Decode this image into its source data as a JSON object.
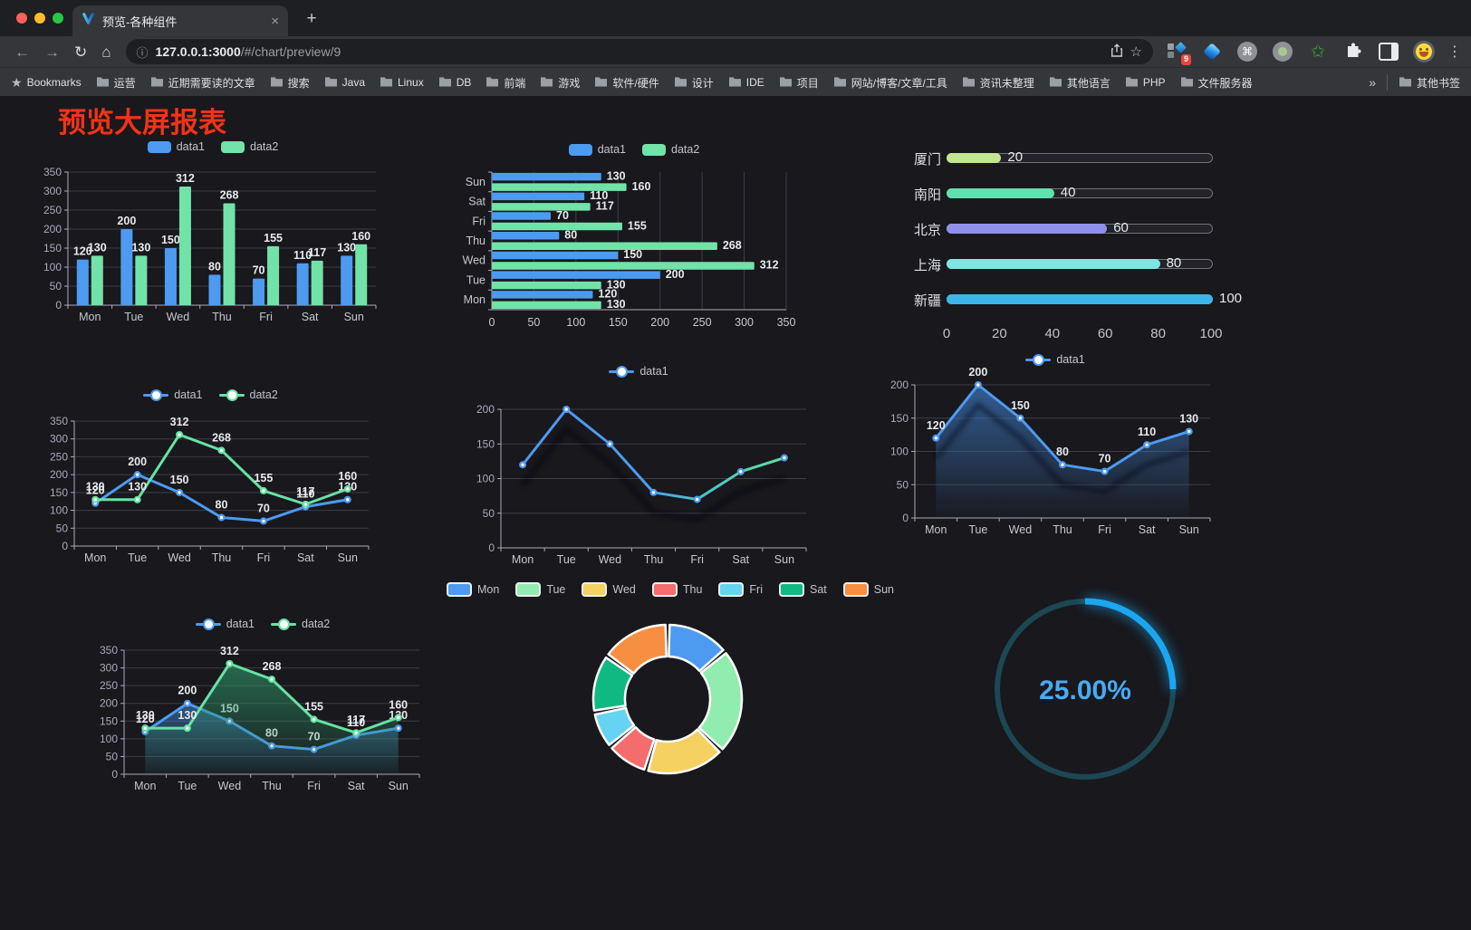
{
  "browser": {
    "tab": {
      "title": "预览-各种组件",
      "close_glyph": "×",
      "new_tab_glyph": "+"
    },
    "nav": {
      "back_glyph": "←",
      "forward_glyph": "→",
      "reload_glyph": "↻",
      "home_glyph": "⌂"
    },
    "omnibox": {
      "info_glyph": "ⓘ",
      "host": "127.0.0.1:3000",
      "path": "/#/chart/preview/9",
      "star_glyph": "☆"
    },
    "extensions_badge": "9",
    "menu_glyph": "⋮",
    "bookmarks": {
      "star_glyph": "★",
      "first": "Bookmarks",
      "items": [
        "运营",
        "近期需要读的文章",
        "搜索",
        "Java",
        "Linux",
        "DB",
        "前端",
        "游戏",
        "软件/硬件",
        "设计",
        "IDE",
        "项目",
        "网站/博客/文章/工具",
        "资讯未整理",
        "其他语言",
        "PHP",
        "文件服务器"
      ],
      "overflow_glyph": "»",
      "other_label": "其他书签"
    }
  },
  "page": {
    "title": "预览大屏报表",
    "title_color": "#F13318"
  },
  "chart_data": [
    {
      "id": "c1",
      "type": "bar",
      "orientation": "vertical",
      "categories": [
        "Mon",
        "Tue",
        "Wed",
        "Thu",
        "Fri",
        "Sat",
        "Sun"
      ],
      "series": [
        {
          "name": "data1",
          "color": "#4C9BF1",
          "values": [
            120,
            200,
            150,
            80,
            70,
            110,
            130
          ]
        },
        {
          "name": "data2",
          "color": "#72E3A8",
          "values": [
            130,
            130,
            312,
            268,
            155,
            117,
            160
          ]
        }
      ],
      "ylim": [
        0,
        350
      ],
      "yticks": [
        0,
        50,
        100,
        150,
        200,
        250,
        300,
        350
      ],
      "value_labels": true,
      "legend_position": "top",
      "grid": true
    },
    {
      "id": "c2",
      "type": "bar",
      "orientation": "horizontal",
      "categories": [
        "Mon",
        "Tue",
        "Wed",
        "Thu",
        "Fri",
        "Sat",
        "Sun"
      ],
      "display_order_top_to_bottom": [
        "Sun",
        "Sat",
        "Fri",
        "Thu",
        "Wed",
        "Tue",
        "Mon"
      ],
      "series": [
        {
          "name": "data1",
          "color": "#4C9BF1",
          "values": [
            120,
            200,
            150,
            80,
            70,
            110,
            130
          ]
        },
        {
          "name": "data2",
          "color": "#72E3A8",
          "values": [
            130,
            130,
            312,
            268,
            155,
            117,
            160
          ]
        }
      ],
      "xlim": [
        0,
        350
      ],
      "xticks": [
        0,
        50,
        100,
        150,
        200,
        250,
        300,
        350
      ],
      "value_labels": true,
      "legend_position": "top",
      "grid": true
    },
    {
      "id": "c3",
      "type": "bar",
      "subtype": "progress",
      "items": [
        {
          "label": "厦门",
          "value": 20,
          "color": "#C2E88F"
        },
        {
          "label": "南阳",
          "value": 40,
          "color": "#5FE0AD"
        },
        {
          "label": "北京",
          "value": 60,
          "color": "#8F90EC"
        },
        {
          "label": "上海",
          "value": 80,
          "color": "#7FE6E2"
        },
        {
          "label": "新疆",
          "value": 100,
          "color": "#3DB5E8"
        }
      ],
      "xlim": [
        0,
        100
      ],
      "xticks": [
        0,
        20,
        40,
        60,
        80,
        100
      ]
    },
    {
      "id": "c4",
      "type": "line",
      "categories": [
        "Mon",
        "Tue",
        "Wed",
        "Thu",
        "Fri",
        "Sat",
        "Sun"
      ],
      "series": [
        {
          "name": "data1",
          "color": "#4C9BF1",
          "values": [
            120,
            200,
            150,
            80,
            70,
            110,
            130
          ]
        },
        {
          "name": "data2",
          "color": "#67E2A4",
          "values": [
            130,
            130,
            312,
            268,
            155,
            117,
            160
          ]
        }
      ],
      "ylim": [
        0,
        350
      ],
      "yticks": [
        0,
        50,
        100,
        150,
        200,
        250,
        300,
        350
      ],
      "value_labels": true,
      "legend_position": "top",
      "grid": true
    },
    {
      "id": "c5",
      "type": "line",
      "categories": [
        "Mon",
        "Tue",
        "Wed",
        "Thu",
        "Fri",
        "Sat",
        "Sun"
      ],
      "series": [
        {
          "name": "data1",
          "color": "#4C9BF1",
          "color_gradient": [
            "#4C9BF1",
            "#4C9BF1",
            "#48C8C0",
            "#5FE3A0"
          ],
          "values": [
            120,
            200,
            150,
            80,
            70,
            110,
            130
          ]
        }
      ],
      "ylim": [
        0,
        200
      ],
      "yticks": [
        0,
        50,
        100,
        150,
        200
      ],
      "value_labels": false,
      "legend_position": "top",
      "grid": true,
      "shadow": true
    },
    {
      "id": "c6",
      "type": "line",
      "categories": [
        "Mon",
        "Tue",
        "Wed",
        "Thu",
        "Fri",
        "Sat",
        "Sun"
      ],
      "series": [
        {
          "name": "data1",
          "color": "#4C9BF1",
          "values": [
            120,
            200,
            150,
            80,
            70,
            110,
            130
          ],
          "area": true,
          "area_colors": [
            "rgba(58,112,178,0.78)",
            "rgba(58,112,178,0.03)"
          ]
        }
      ],
      "ylim": [
        0,
        200
      ],
      "yticks": [
        0,
        50,
        100,
        150,
        200
      ],
      "value_labels": true,
      "legend_position": "top",
      "grid": true,
      "shadow": true
    },
    {
      "id": "c7",
      "type": "line",
      "categories": [
        "Mon",
        "Tue",
        "Wed",
        "Thu",
        "Fri",
        "Sat",
        "Sun"
      ],
      "series": [
        {
          "name": "data1",
          "color": "#4C9BF1",
          "values": [
            120,
            200,
            150,
            80,
            70,
            110,
            130
          ],
          "area": true,
          "area_colors": [
            "rgba(64,128,198,0.60)",
            "rgba(64,128,198,0.03)"
          ]
        },
        {
          "name": "data2",
          "color": "#67E2A4",
          "values": [
            130,
            130,
            312,
            268,
            155,
            117,
            160
          ],
          "area": true,
          "area_colors": [
            "rgba(47,150,104,0.65)",
            "rgba(47,150,104,0.03)"
          ]
        }
      ],
      "ylim": [
        0,
        350
      ],
      "yticks": [
        0,
        50,
        100,
        150,
        200,
        250,
        300,
        350
      ],
      "value_labels": true,
      "legend_position": "top",
      "grid": true
    },
    {
      "id": "c8",
      "type": "pie",
      "donut": true,
      "categories": [
        "Mon",
        "Tue",
        "Wed",
        "Thu",
        "Fri",
        "Sat",
        "Sun"
      ],
      "values": [
        120,
        200,
        150,
        80,
        70,
        110,
        130
      ],
      "colors": [
        "#4C9BF1",
        "#91EDAF",
        "#F5D162",
        "#F56C6C",
        "#67D3F2",
        "#10B981",
        "#F68F41"
      ],
      "border_color": "#FFFFFF",
      "legend_position": "top"
    },
    {
      "id": "c9",
      "type": "gauge",
      "value": 25,
      "display": "25.00%",
      "color": "#1BA7F0",
      "track_color": "#1C4753",
      "text_color": "#47ABF3"
    }
  ]
}
